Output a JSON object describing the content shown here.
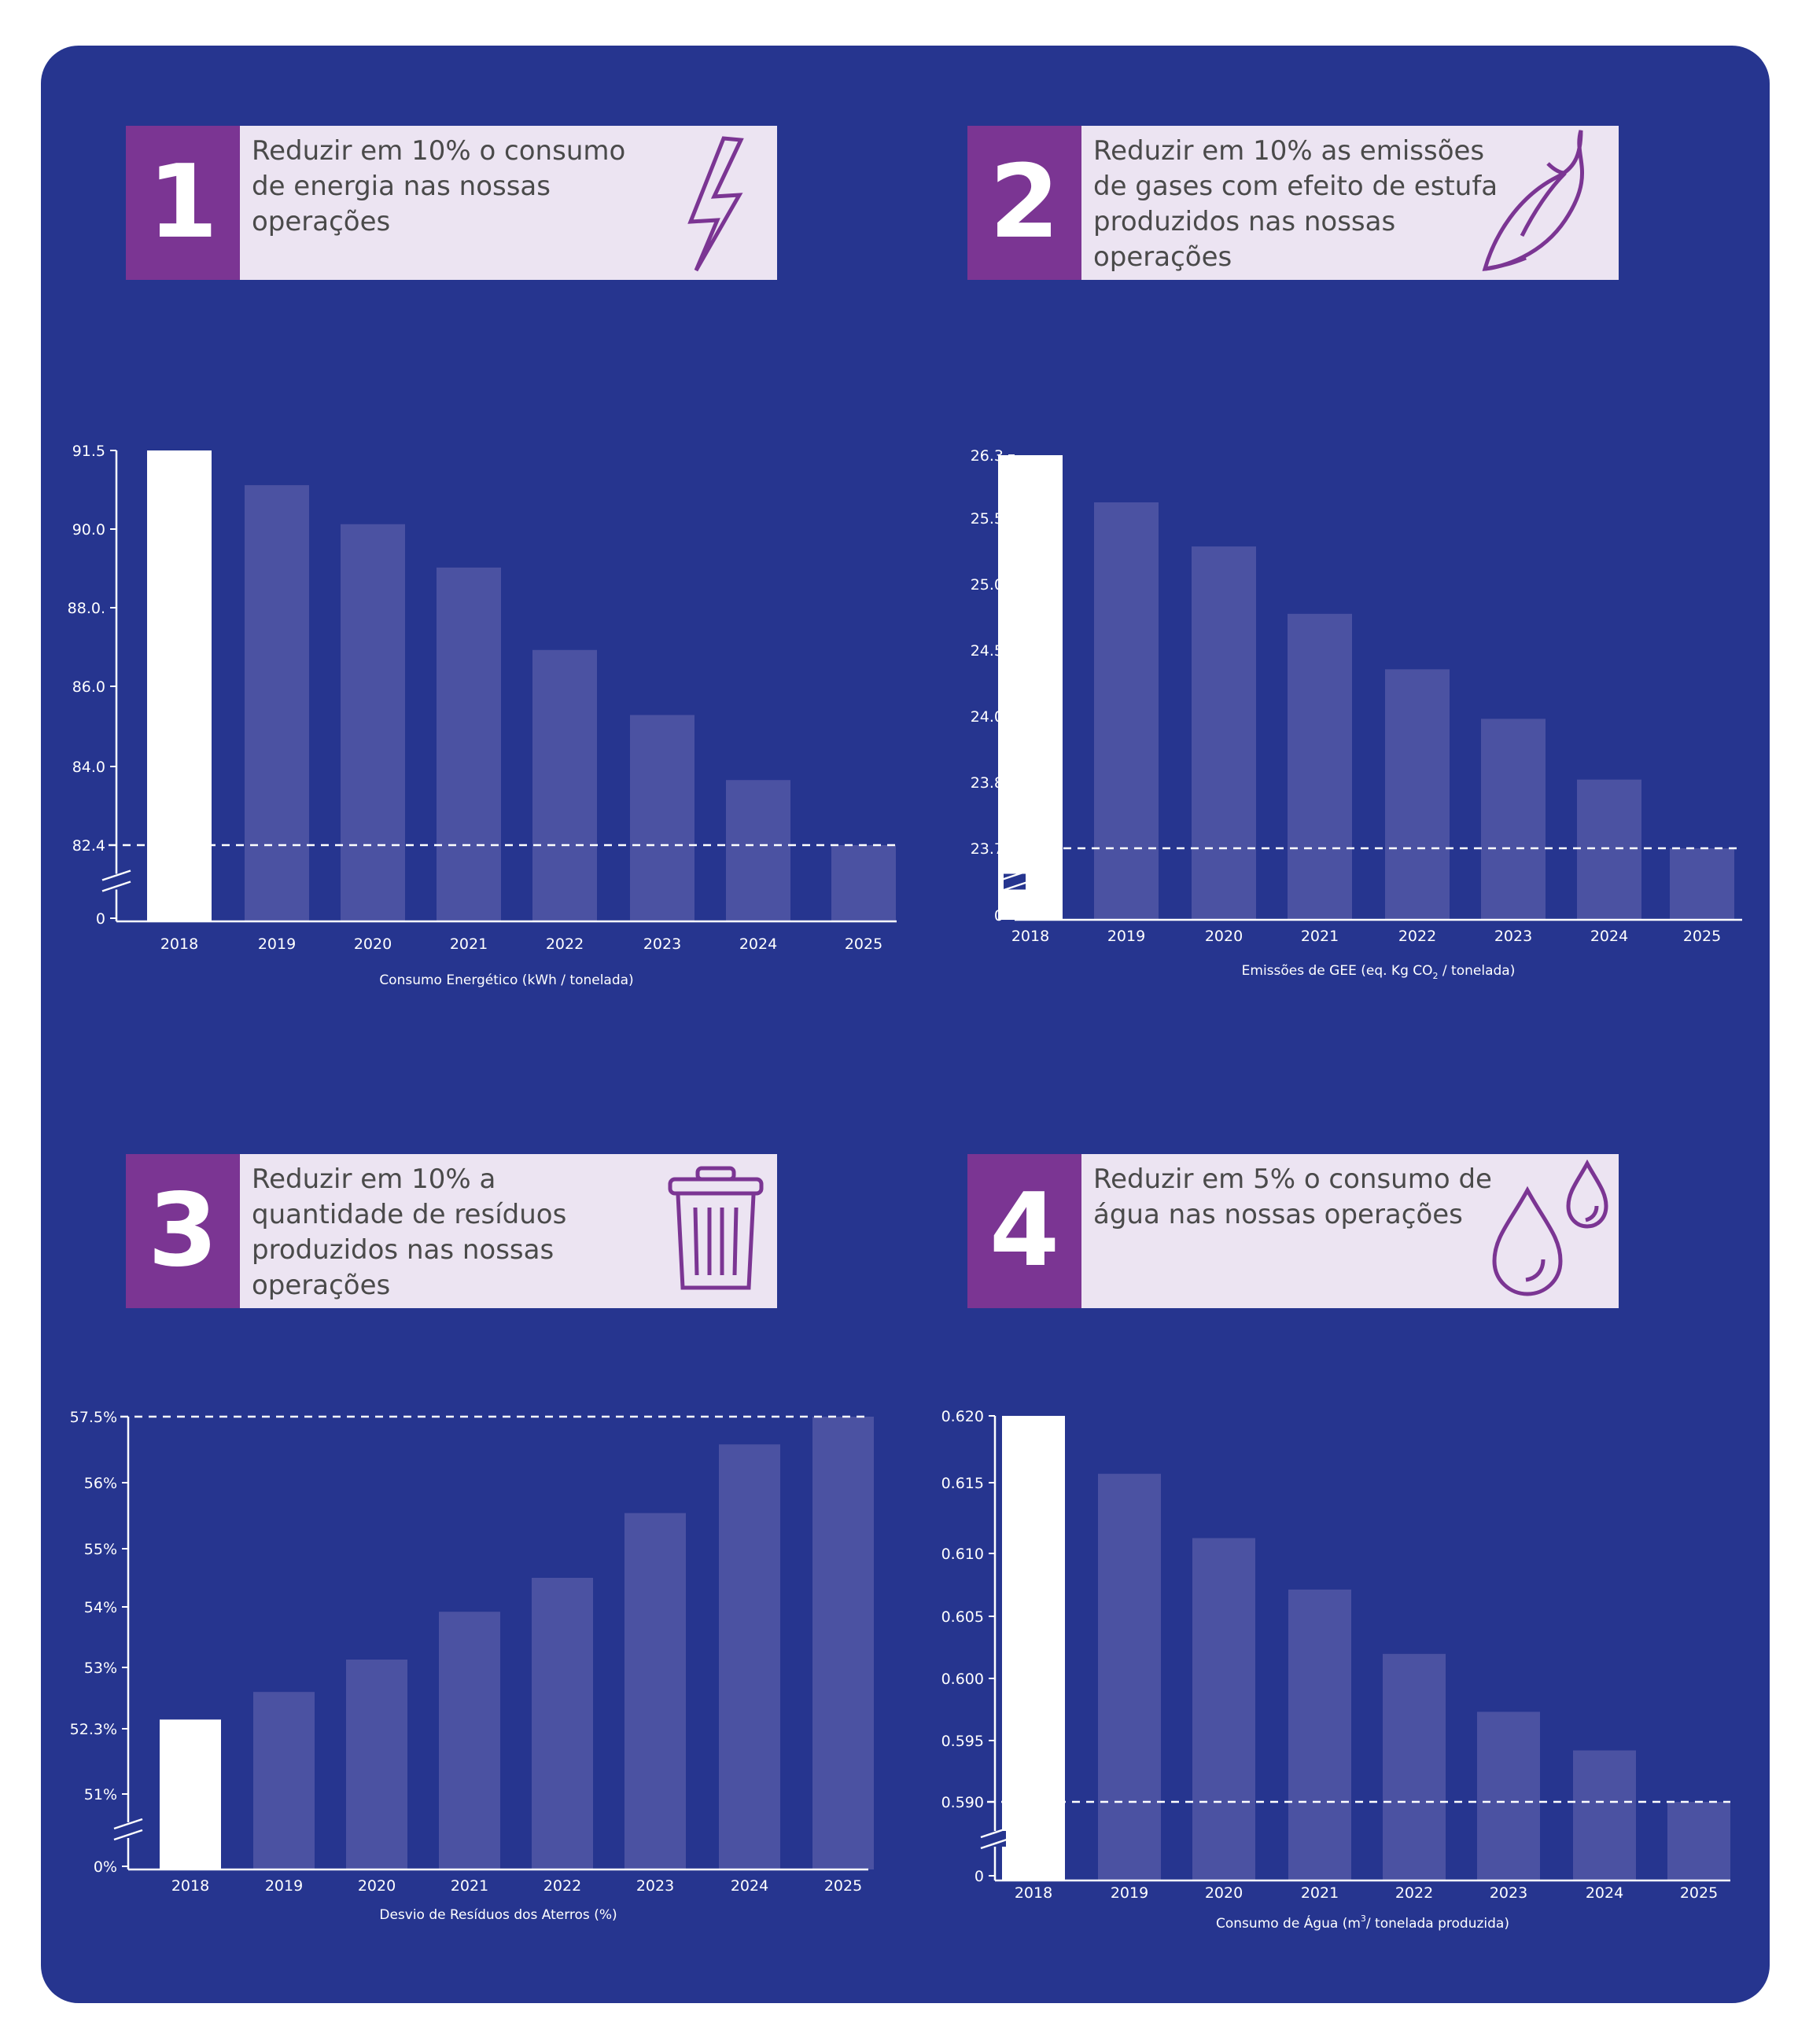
{
  "colors": {
    "background": "#26358f",
    "accent": "#7b3593",
    "card": "#ece4f2",
    "bar_first": "#ffffff",
    "bar_other": "#4b52a2",
    "text_card": "#4a4a4a"
  },
  "goals": [
    {
      "number": "1",
      "text": "Reduzir em 10% o consumo de energia nas nossas operações",
      "icon": "lightning-icon"
    },
    {
      "number": "2",
      "text": "Reduzir em 10% as emissões de gases com efeito de estufa produzidos nas nossas operações",
      "icon": "leaf-icon"
    },
    {
      "number": "3",
      "text": "Reduzir em 10% a quantidade de resíduos produzidos nas nossas operações",
      "icon": "trash-icon"
    },
    {
      "number": "4",
      "text": "Reduzir em 5% o consumo de água nas nossas operações",
      "icon": "water-drops-icon"
    }
  ],
  "chart_data": [
    {
      "type": "bar",
      "categories": [
        "2018",
        "2019",
        "2020",
        "2021",
        "2022",
        "2023",
        "2024",
        "2025"
      ],
      "values": [
        91.5,
        90.7,
        89.8,
        88.8,
        86.9,
        85.4,
        83.9,
        82.4
      ],
      "ytick_labels": [
        "0",
        "82.4",
        "84.0",
        "86.0",
        "88.0.",
        "90.0",
        "91.5"
      ],
      "ytick_values": [
        null,
        82.4,
        84.0,
        86.0,
        88.0,
        90.0,
        91.5
      ],
      "ylim": [
        82.4,
        91.5
      ],
      "axis_break": true,
      "target_line": 82.4,
      "xlabel": "Consumo Energético (kWh / tonelada)"
    },
    {
      "type": "bar",
      "categories": [
        "2018",
        "2019",
        "2020",
        "2021",
        "2022",
        "2023",
        "2024",
        "2025"
      ],
      "values": [
        26.35,
        25.55,
        25.2,
        24.7,
        24.28,
        23.9,
        23.45,
        23.7
      ],
      "ytick_labels": [
        "0",
        "23.7",
        "23.8",
        "24.0",
        "24.5",
        "25.0",
        "25.5",
        "26.3"
      ],
      "ytick_levels": [
        -1,
        0,
        1,
        2,
        3,
        4,
        5,
        6
      ],
      "bar_levels": [
        6.06,
        5.25,
        4.57,
        3.55,
        2.71,
        1.96,
        1.04,
        0
      ],
      "axis_break": true,
      "target_line": 23.7,
      "xlabel": "Emissões de GEE (eq. Kg CO",
      "xlabel_sub": "2",
      "xlabel_end": " / tonelada)"
    },
    {
      "type": "bar",
      "categories": [
        "2018",
        "2019",
        "2020",
        "2021",
        "2022",
        "2023",
        "2024",
        "2025"
      ],
      "values": [
        52.3,
        52.8,
        53.3,
        54.0,
        54.6,
        55.6,
        56.6,
        57.5
      ],
      "ytick_labels": [
        "0%",
        "51%",
        "52.3%",
        "53%",
        "54%",
        "55%",
        "56%",
        "57.5%"
      ],
      "ytick_levels": [
        -1,
        0,
        1,
        2,
        3,
        4,
        5,
        6
      ],
      "bar_levels": [
        1.15,
        1.6,
        2.13,
        2.92,
        3.5,
        4.54,
        5.58,
        6.25
      ],
      "axis_break": true,
      "target_line": 57.5,
      "xlabel": "Desvio de Resíduos dos Aterros (%)"
    },
    {
      "type": "bar",
      "categories": [
        "2018",
        "2019",
        "2020",
        "2021",
        "2022",
        "2023",
        "2024",
        "2025"
      ],
      "values": [
        0.62,
        0.6155,
        0.6105,
        0.6065,
        0.6015,
        0.597,
        0.594,
        0.59
      ],
      "ytick_labels": [
        "0",
        "0.590",
        "0.595",
        "0.600",
        "0.605",
        "0.610",
        "0.615",
        "0.620"
      ],
      "ytick_values": [
        null,
        0.59,
        0.595,
        0.6,
        0.605,
        0.61,
        0.615,
        0.62
      ],
      "ylim": [
        0.59,
        0.62
      ],
      "axis_break": true,
      "target_line": 0.59,
      "xlabel": "Consumo de Água (m",
      "xlabel_sup": "3",
      "xlabel_end": "/ tonelada produzida)"
    }
  ]
}
